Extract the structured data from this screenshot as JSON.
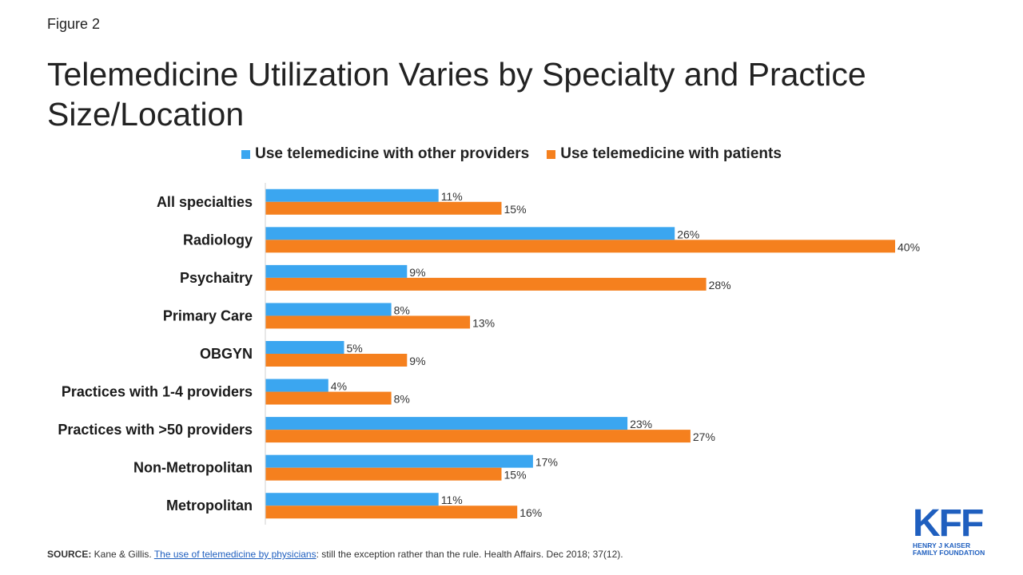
{
  "figure_label": "Figure 2",
  "title": "Telemedicine Utilization Varies by Specialty and Practice Size/Location",
  "colors": {
    "series1": "#3ba6f0",
    "series2": "#f5801e",
    "logo": "#1f5fbf"
  },
  "chart_data": {
    "type": "bar",
    "orientation": "horizontal",
    "title": "Telemedicine Utilization Varies by Specialty and Practice Size/Location",
    "categories": [
      "All specialties",
      "Radiology",
      "Psychaitry",
      "Primary Care",
      "OBGYN",
      "Practices with 1-4 providers",
      "Practices  with >50 providers",
      "Non-Metropolitan",
      "Metropolitan"
    ],
    "series": [
      {
        "name": "Use telemedicine with other providers",
        "values": [
          11,
          26,
          9,
          8,
          5,
          4,
          23,
          17,
          11
        ],
        "labels": [
          "11%",
          "26%",
          "9%",
          "8%",
          "5%",
          "4%",
          "23%",
          "17%",
          "11%"
        ]
      },
      {
        "name": "Use telemedicine with patients",
        "values": [
          15,
          40,
          28,
          13,
          9,
          8,
          27,
          15,
          16
        ],
        "labels": [
          "15%",
          "40%",
          "28%",
          "13%",
          "9%",
          "8%",
          "27%",
          "15%",
          "16%"
        ]
      }
    ],
    "value_unit": "%",
    "xlim": [
      0,
      40
    ],
    "grid": false,
    "legend_position": "top"
  },
  "legend": {
    "series1": "Use telemedicine with other providers",
    "series2": "Use telemedicine with patients"
  },
  "source": {
    "prefix": "SOURCE: ",
    "authors": "Kane & Gillis. ",
    "link_text": "The  use of telemedicine by physicians",
    "rest": ": still the exception rather than the rule. Health Affairs. Dec 2018; 37(12)."
  },
  "logo": {
    "mark": "KFF",
    "line1": "HENRY J KAISER",
    "line2": "FAMILY FOUNDATION"
  }
}
